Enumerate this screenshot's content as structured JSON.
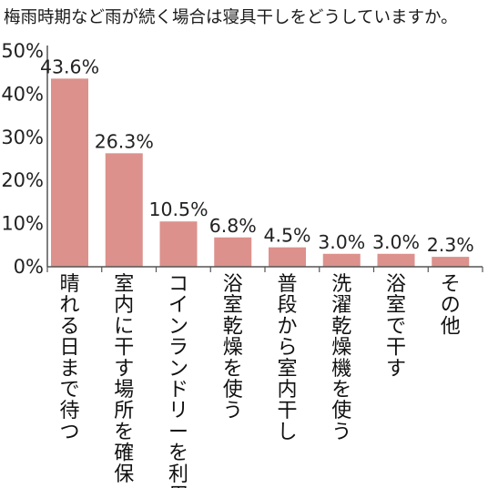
{
  "chart_data": {
    "type": "bar",
    "title": "梅雨時期など雨が続く場合は寝具干しをどうしていますか。",
    "categories": [
      "晴れる日まで待つ",
      "室内に干す場所を確保",
      "コインランドリーを利用",
      "浴室乾燥を使う",
      "普段から室内干し",
      "洗濯乾燥機を使う",
      "浴室で干す",
      "その他"
    ],
    "values": [
      43.6,
      26.3,
      10.5,
      6.8,
      4.5,
      3.0,
      3.0,
      2.3
    ],
    "value_labels": [
      "43.6%",
      "26.3%",
      "10.5%",
      "6.8%",
      "4.5%",
      "3.0%",
      "3.0%",
      "2.3%"
    ],
    "y_ticks": [
      "0%",
      "10%",
      "20%",
      "30%",
      "40%",
      "50%"
    ],
    "ylim": [
      0,
      50
    ],
    "xlabel": "",
    "ylabel": "",
    "grid": false,
    "bar_color": "#dc918c",
    "axis_color": "#555555"
  }
}
